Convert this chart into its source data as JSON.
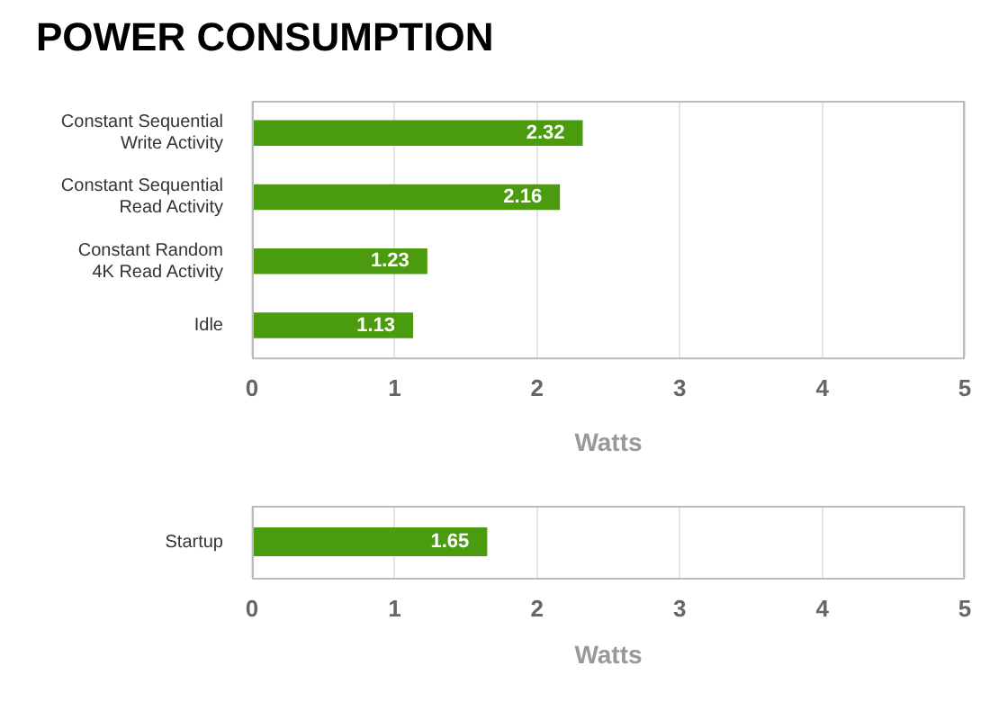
{
  "chart_data": [
    {
      "type": "bar",
      "title": "POWER CONSUMPTION",
      "orientation": "horizontal",
      "categories": [
        "Constant Sequential\nWrite Activity",
        "Constant Sequential\nRead Activity",
        "Constant Random\n4K Read Activity",
        "Idle"
      ],
      "values": [
        2.32,
        2.16,
        1.23,
        1.13
      ],
      "color": "#4b9b0e",
      "xlabel": "Watts",
      "xlim": [
        0,
        5
      ],
      "xticks": [
        0,
        1,
        2,
        3,
        4,
        5
      ],
      "grid": "x",
      "data_labels": true
    },
    {
      "type": "bar",
      "orientation": "horizontal",
      "categories": [
        "Startup"
      ],
      "values": [
        1.65
      ],
      "color": "#4b9b0e",
      "xlabel": "Watts",
      "xlim": [
        0,
        5
      ],
      "xticks": [
        0,
        1,
        2,
        3,
        4,
        5
      ],
      "grid": "x",
      "data_labels": true
    }
  ]
}
